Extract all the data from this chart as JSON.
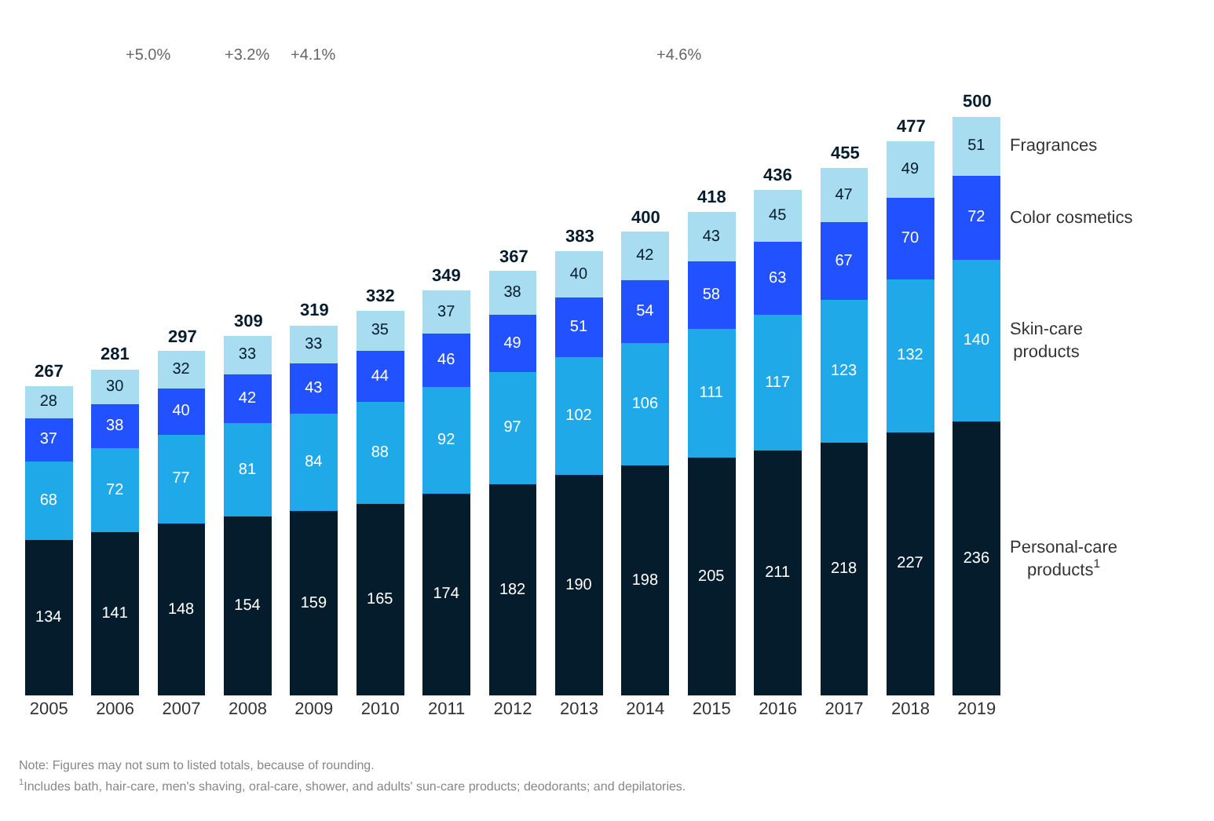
{
  "chart_data": {
    "type": "bar",
    "stacked": true,
    "data_labels": true,
    "legend": false,
    "categories": [
      "2005",
      "2006",
      "2007",
      "2008",
      "2009",
      "2010",
      "2011",
      "2012",
      "2013",
      "2014",
      "2015",
      "2016",
      "2017",
      "2018",
      "2019"
    ],
    "series": [
      {
        "name": "Personal-care products$^{1}$",
        "color": "#051c2c",
        "values": [
          134,
          141,
          148,
          154,
          159,
          165,
          174,
          182,
          190,
          198,
          205,
          211,
          218,
          227,
          236
        ]
      },
      {
        "name": "Skin-care products",
        "color": "#1fa9e8",
        "values": [
          68,
          72,
          77,
          81,
          84,
          88,
          92,
          97,
          102,
          106,
          111,
          117,
          123,
          132,
          140
        ]
      },
      {
        "name": "Color cosmetics",
        "color": "#2251ff",
        "values": [
          37,
          38,
          40,
          42,
          43,
          44,
          46,
          49,
          51,
          54,
          58,
          63,
          67,
          70,
          72
        ]
      },
      {
        "name": "Fragrances",
        "color": "#a8dcf0",
        "values": [
          28,
          30,
          32,
          33,
          33,
          35,
          37,
          38,
          40,
          42,
          43,
          45,
          47,
          49,
          51
        ]
      }
    ],
    "totals": [
      "267",
      "281",
      "297",
      "309",
      "319",
      "332",
      "349",
      "367",
      "383",
      "400",
      "418",
      "436",
      "455",
      "477",
      "500"
    ],
    "annotations": [
      "+5.0%",
      "+3.2%",
      "+4.1%",
      "+4.6%",
      "Note: Figures may not sum to listed totals, because of rounding.",
      "$^{1}$Includes bath, hair-care, men's shaving, oral-care, shower, and adults' sun-care products; deodorants; and depilatories."
    ]
  }
}
